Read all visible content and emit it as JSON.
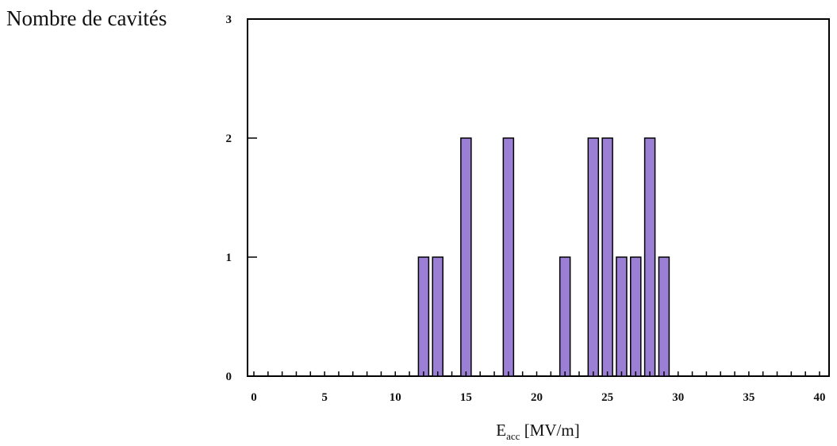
{
  "chart_data": {
    "type": "bar",
    "title": "",
    "ylabel": "Nombre de cavités",
    "xlabel": {
      "main": "E",
      "subscript": "acc",
      "rest": " [MV/m]"
    },
    "x": [
      12,
      13,
      15,
      18,
      22,
      24,
      25,
      26,
      27,
      28,
      29
    ],
    "values": [
      1,
      1,
      2,
      2,
      1,
      2,
      2,
      1,
      1,
      2,
      1
    ],
    "xlim": [
      0,
      40
    ],
    "ylim": [
      0,
      3
    ],
    "xticks": [
      0,
      5,
      10,
      15,
      20,
      25,
      30,
      35,
      40
    ],
    "yticks": [
      0,
      1,
      2,
      3
    ],
    "minor_x_step": 1,
    "grid": false,
    "bar_color": "#9b7fd4",
    "bar_edge_color": "#000000"
  }
}
